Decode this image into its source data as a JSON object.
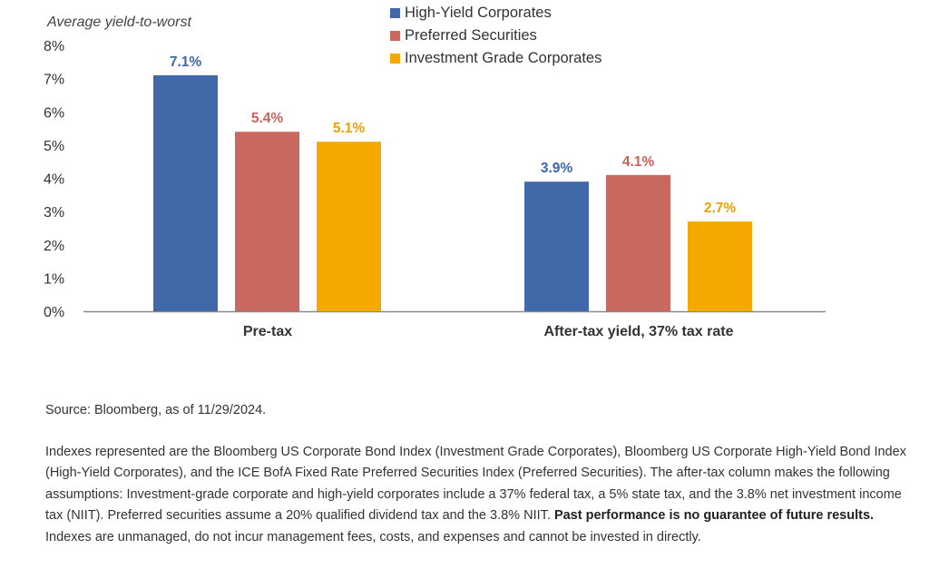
{
  "chart_data": {
    "type": "bar",
    "ylabel": "Average yield-to-worst",
    "ylim": [
      0,
      8
    ],
    "yticks": [
      "0%",
      "1%",
      "2%",
      "3%",
      "4%",
      "5%",
      "6%",
      "7%",
      "8%"
    ],
    "categories": [
      "Pre-tax",
      "After-tax yield, 37% tax rate"
    ],
    "series": [
      {
        "name": "High-Yield Corporates",
        "color": "#4169aa",
        "label_color": "#3f67a8",
        "values": [
          7.1,
          3.9
        ],
        "labels": [
          "7.1%",
          "3.9%"
        ]
      },
      {
        "name": "Preferred Securities",
        "color": "#c8685f",
        "label_color": "#c8625a",
        "values": [
          5.4,
          4.1
        ],
        "labels": [
          "5.4%",
          "4.1%"
        ]
      },
      {
        "name": "Investment Grade Corporates",
        "color": "#f5a800",
        "label_color": "#eea200",
        "values": [
          5.1,
          2.7
        ],
        "labels": [
          "5.1%",
          "2.7%"
        ]
      }
    ],
    "legend_position": "top-center",
    "grid": false
  },
  "notes": {
    "source": "Source: Bloomberg, as of 11/29/2024.",
    "disclosure_text": "Indexes represented are the Bloomberg US Corporate Bond Index (Investment Grade Corporates), Bloomberg US Corporate High-Yield Bond Index (High-Yield Corporates), and the ICE BofA Fixed Rate Preferred Securities Index (Preferred Securities). The after-tax column makes the following assumptions: Investment-grade corporate and high-yield corporates include a 37% federal tax, a 5% state tax, and the 3.8% net investment income tax (NIIT). Preferred securities assume a 20% qualified dividend tax and the 3.8% NIIT.",
    "disclosure_bold": "Past performance is no guarantee of future results.",
    "disclosure_tail": "Indexes are unmanaged, do not incur management fees, costs, and expenses and cannot be invested in directly."
  }
}
